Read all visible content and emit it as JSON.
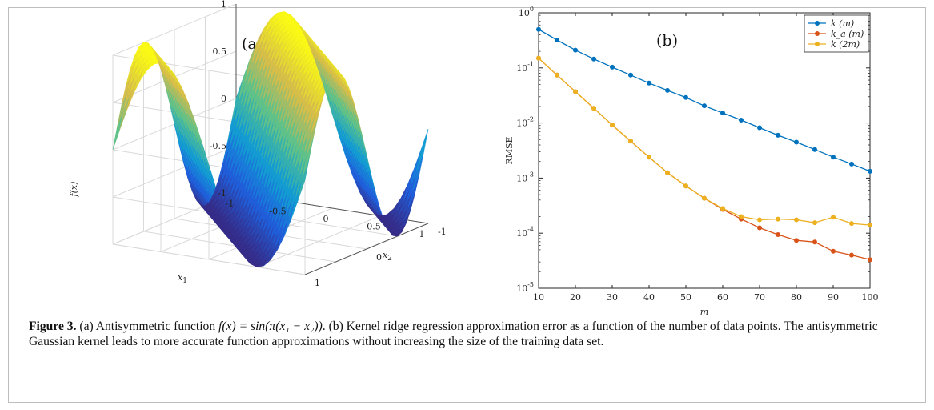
{
  "panel_a": {
    "label": "(a)",
    "zlabel": "f(x)",
    "x1label": "x",
    "x1sub": "1",
    "x2label": "x",
    "x2sub": "2",
    "zticks": [
      "1",
      "0.5",
      "0",
      "-0.5",
      "-1"
    ],
    "x1ticks": [
      "-1",
      "-0.5",
      "0",
      "0.5",
      "1"
    ],
    "x2ticks": [
      "-1",
      "0",
      "1"
    ]
  },
  "panel_b": {
    "label": "(b)"
  },
  "caption": {
    "figure": "Figure 3.",
    "text_a": " (a) Antisymmetric function ",
    "formula": "f(x) = sin(π(x₁ − x₂))",
    "text_b": ". (b) Kernel ridge regression approximation error as a function of the number of data points. The antisymmetric Gaussian kernel leads to more accurate function approximations without increasing the size of the training data set."
  },
  "chart_data": [
    {
      "type": "surface",
      "title": "(a)",
      "function": "sin(pi*(x1 - x2))",
      "xlabel": "x1",
      "ylabel": "x2",
      "zlabel": "f(x)",
      "xlim": [
        -1,
        1
      ],
      "ylim": [
        -1,
        1
      ],
      "zlim": [
        -1,
        1
      ],
      "colormap": "parula",
      "grid": true
    },
    {
      "type": "line",
      "title": "(b)",
      "xlabel": "m",
      "ylabel": "RMSE",
      "yscale": "log",
      "xlim": [
        10,
        100
      ],
      "ylim": [
        1e-05,
        1
      ],
      "xticks": [
        10,
        20,
        30,
        40,
        50,
        60,
        70,
        80,
        90,
        100
      ],
      "yticks": [
        "10^0",
        "10^-1",
        "10^-2",
        "10^-3",
        "10^-4",
        "10^-5"
      ],
      "grid": false,
      "legend_position": "top-right",
      "x": [
        10,
        15,
        20,
        25,
        30,
        35,
        40,
        45,
        50,
        55,
        60,
        65,
        70,
        75,
        80,
        85,
        90,
        95,
        100
      ],
      "series": [
        {
          "name": "k (m)",
          "color": "#0072BD",
          "values": [
            0.5,
            0.32,
            0.21,
            0.145,
            0.103,
            0.074,
            0.053,
            0.039,
            0.029,
            0.0205,
            0.0152,
            0.0113,
            0.0082,
            0.006,
            0.0045,
            0.0033,
            0.0024,
            0.0018,
            0.00133
          ]
        },
        {
          "name": "k_a (m)",
          "color": "#D95319",
          "values": [
            0.15,
            0.074,
            0.037,
            0.0185,
            0.0092,
            0.0047,
            0.0024,
            0.00125,
            0.00072,
            0.00043,
            0.00027,
            0.00018,
            0.000125,
            9.4e-05,
            7.4e-05,
            6.9e-05,
            4.7e-05,
            4e-05,
            3.3e-05
          ]
        },
        {
          "name": "k (2m)",
          "color": "#EDB120",
          "values": [
            0.15,
            0.074,
            0.037,
            0.0185,
            0.0092,
            0.0047,
            0.0024,
            0.00125,
            0.00072,
            0.00043,
            0.00028,
            0.0002,
            0.000175,
            0.00018,
            0.000175,
            0.000155,
            0.000195,
            0.00015,
            0.00014
          ]
        }
      ]
    }
  ]
}
